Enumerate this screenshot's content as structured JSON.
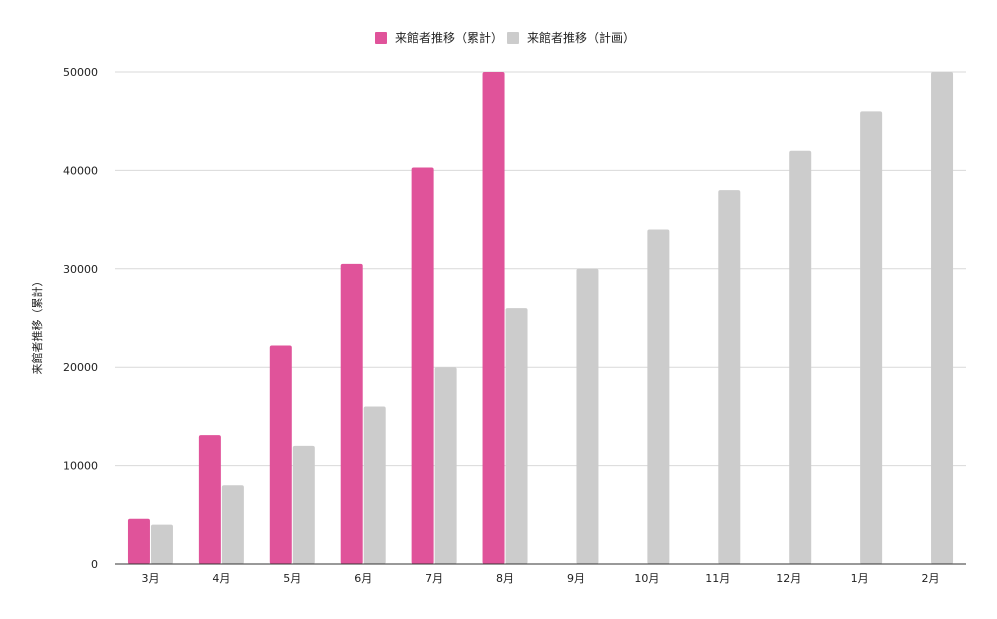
{
  "chart_data": {
    "type": "bar",
    "categories": [
      "3月",
      "4月",
      "5月",
      "6月",
      "7月",
      "8月",
      "9月",
      "10月",
      "11月",
      "12月",
      "1月",
      "2月"
    ],
    "series": [
      {
        "name": "来館者推移（累計）",
        "color": "#e0539a",
        "values": [
          4600,
          13100,
          22200,
          30500,
          40300,
          50000,
          null,
          null,
          null,
          null,
          null,
          null
        ]
      },
      {
        "name": "来館者推移（計画）",
        "color": "#cccccc",
        "values": [
          4000,
          8000,
          12000,
          16000,
          20000,
          26000,
          30000,
          34000,
          38000,
          42000,
          46000,
          50000
        ]
      }
    ],
    "title": "",
    "xlabel": "",
    "ylabel": "来館者推移（累計）",
    "ylim": [
      0,
      50000
    ],
    "yticks": [
      "0",
      "10000",
      "20000",
      "30000",
      "40000",
      "50000"
    ],
    "legend_position": "top-center",
    "grid": true
  }
}
